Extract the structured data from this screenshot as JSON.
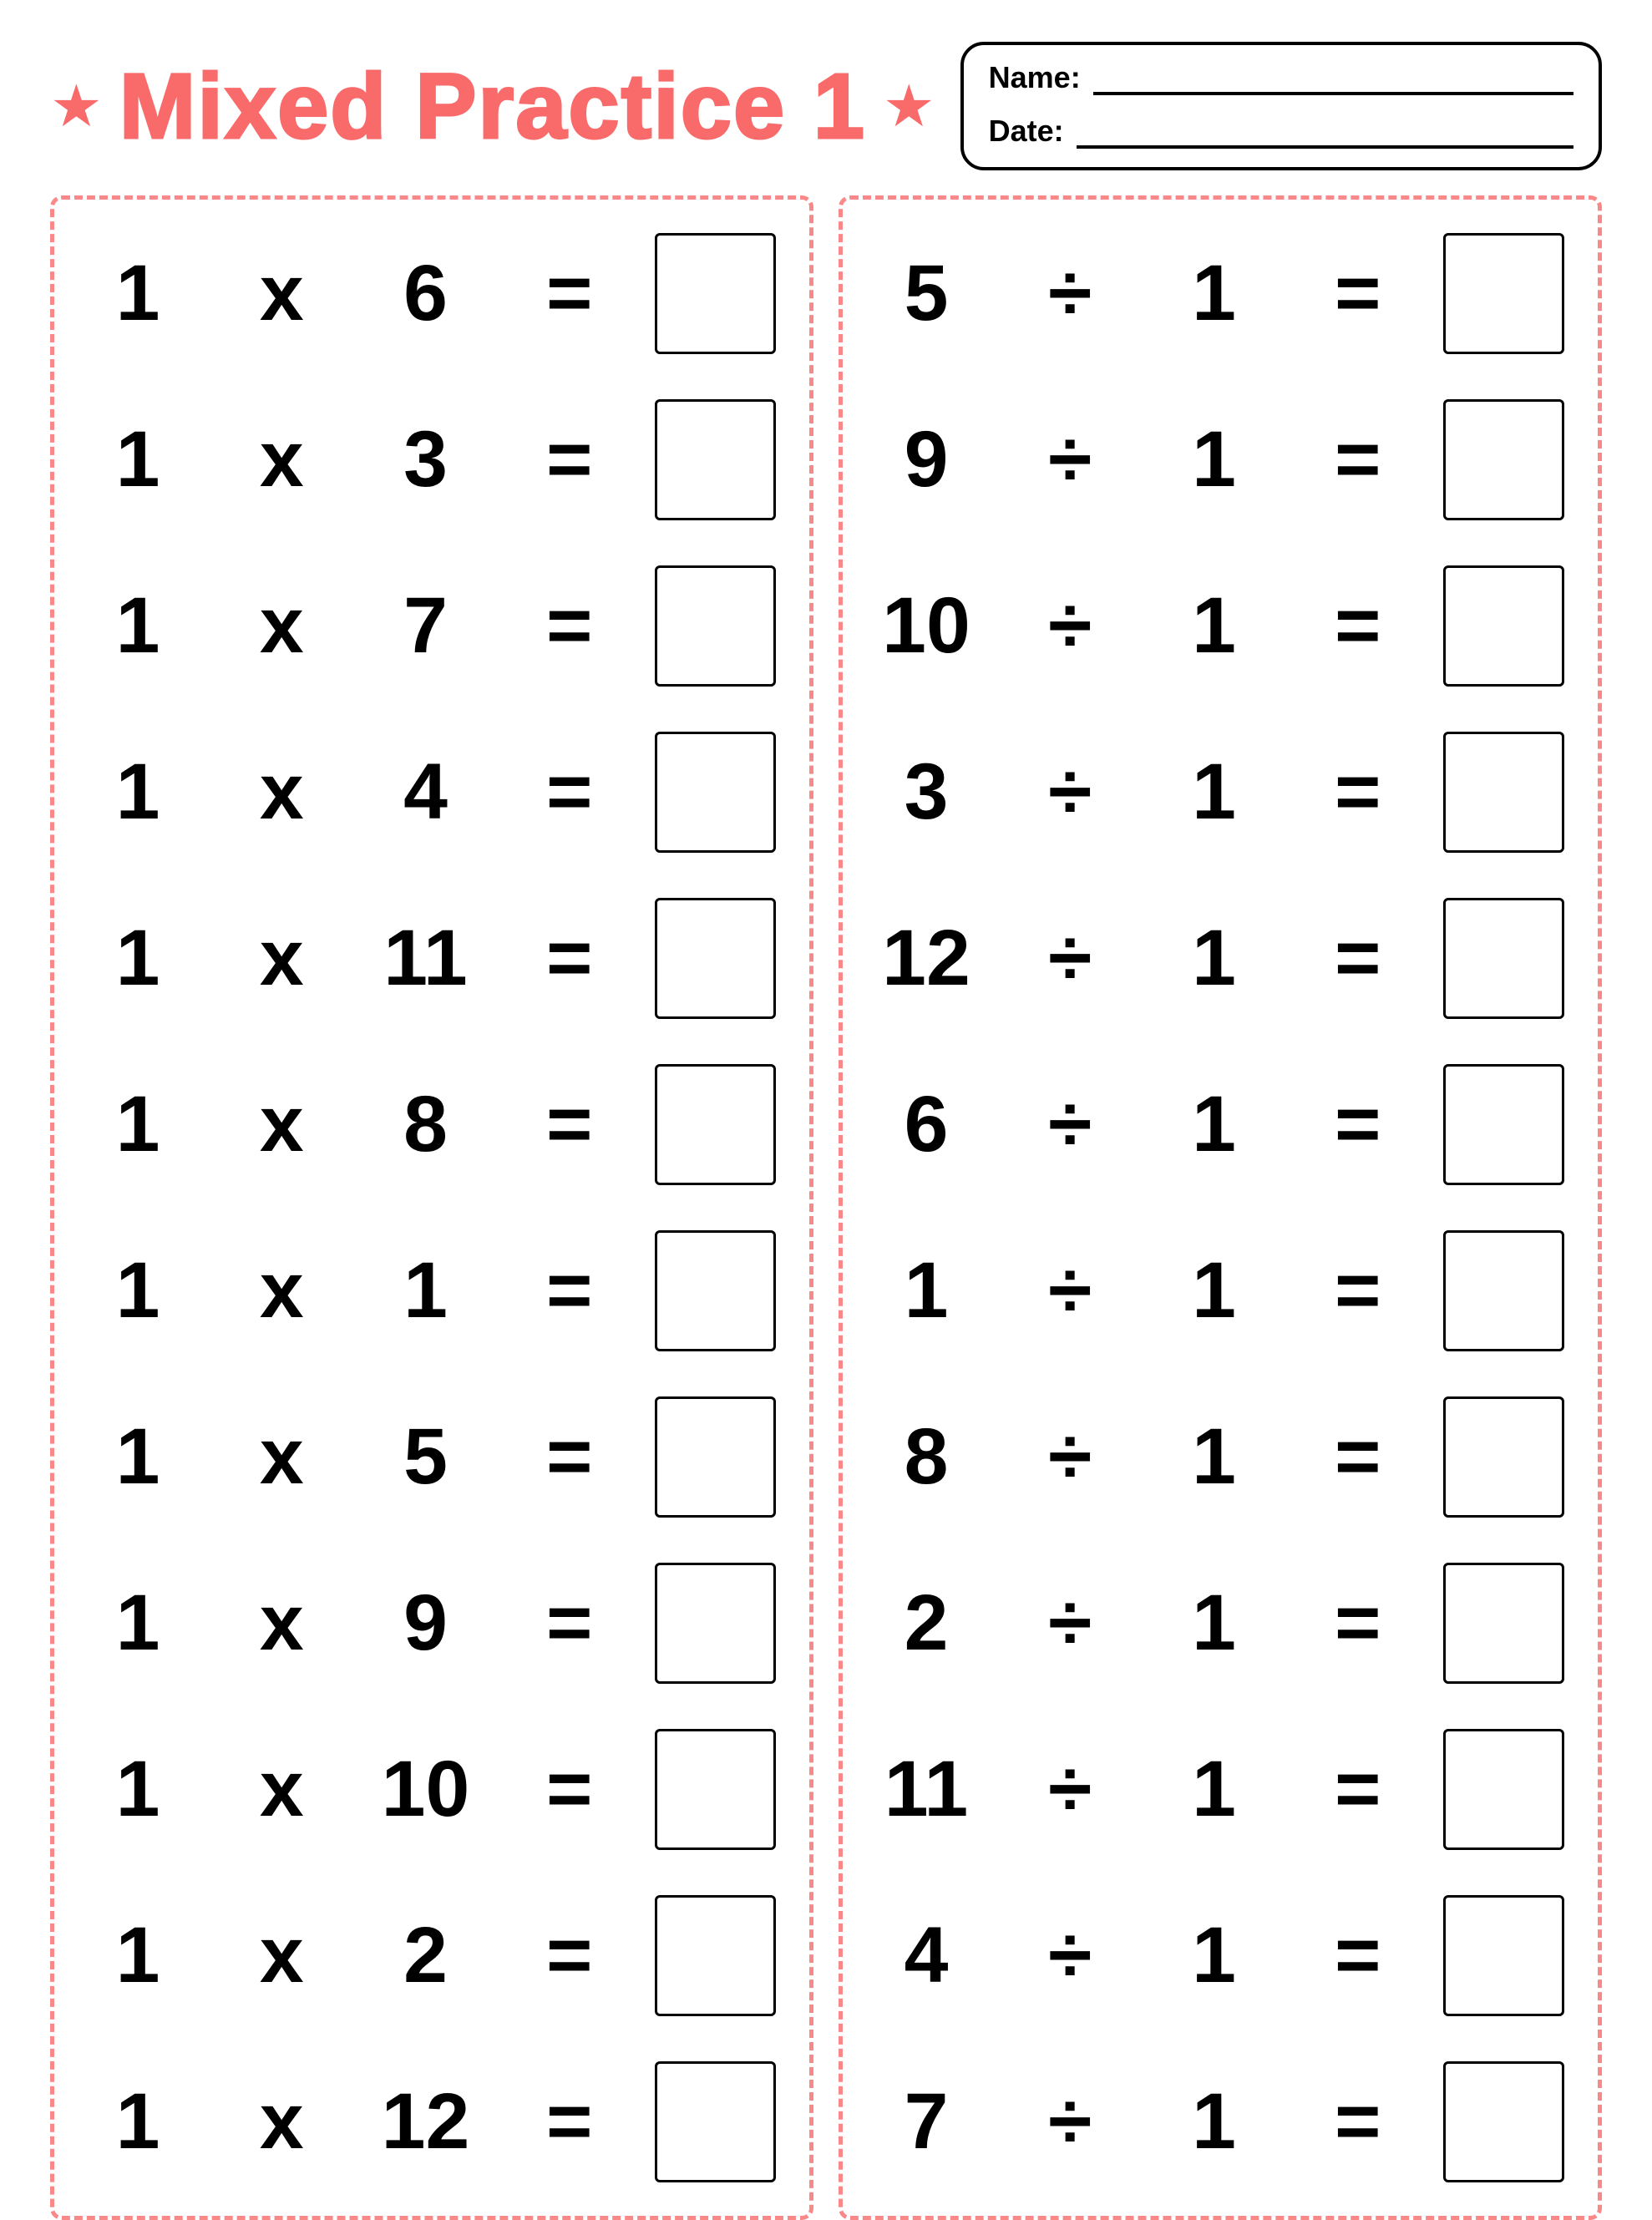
{
  "title": "Mixed Practice 1",
  "title_color": "#f96b6b",
  "star_color": "#f96b6b",
  "border_color": "#f98989",
  "background_color": "#ffffff",
  "namebox": {
    "name_label": "Name:",
    "date_label": "Date:"
  },
  "left_column": {
    "operator": "x",
    "problems": [
      {
        "a": "1",
        "b": "6"
      },
      {
        "a": "1",
        "b": "3"
      },
      {
        "a": "1",
        "b": "7"
      },
      {
        "a": "1",
        "b": "4"
      },
      {
        "a": "1",
        "b": "11"
      },
      {
        "a": "1",
        "b": "8"
      },
      {
        "a": "1",
        "b": "1"
      },
      {
        "a": "1",
        "b": "5"
      },
      {
        "a": "1",
        "b": "9"
      },
      {
        "a": "1",
        "b": "10"
      },
      {
        "a": "1",
        "b": "2"
      },
      {
        "a": "1",
        "b": "12"
      }
    ]
  },
  "right_column": {
    "operator": "÷",
    "problems": [
      {
        "a": "5",
        "b": "1"
      },
      {
        "a": "9",
        "b": "1"
      },
      {
        "a": "10",
        "b": "1"
      },
      {
        "a": "3",
        "b": "1"
      },
      {
        "a": "12",
        "b": "1"
      },
      {
        "a": "6",
        "b": "1"
      },
      {
        "a": "1",
        "b": "1"
      },
      {
        "a": "8",
        "b": "1"
      },
      {
        "a": "2",
        "b": "1"
      },
      {
        "a": "11",
        "b": "1"
      },
      {
        "a": "4",
        "b": "1"
      },
      {
        "a": "7",
        "b": "1"
      }
    ]
  },
  "equals_sign": "="
}
